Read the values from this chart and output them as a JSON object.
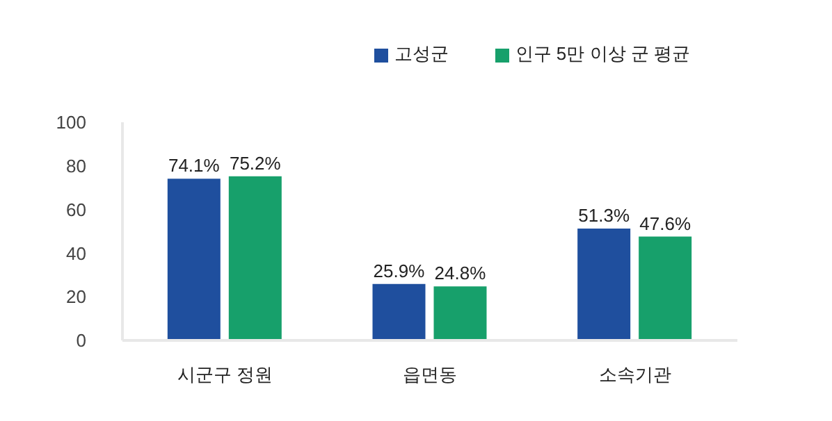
{
  "chart_data": {
    "type": "bar",
    "categories": [
      "시군구 정원",
      "읍면동",
      "소속기관"
    ],
    "series": [
      {
        "name": "고성군",
        "color": "#1f4f9e",
        "values": [
          74.1,
          25.9,
          51.3
        ],
        "value_labels": [
          "74.1%",
          "25.9%",
          "51.3%"
        ]
      },
      {
        "name": "인구 5만 이상 군 평균",
        "color": "#17a06b",
        "values": [
          75.2,
          24.8,
          47.6
        ],
        "value_labels": [
          "75.2%",
          "24.8%",
          "47.6%"
        ]
      }
    ],
    "ylim": [
      0,
      100
    ],
    "yticks": [
      0,
      20,
      40,
      60,
      80,
      100
    ],
    "grid": false,
    "legend": "top right"
  }
}
